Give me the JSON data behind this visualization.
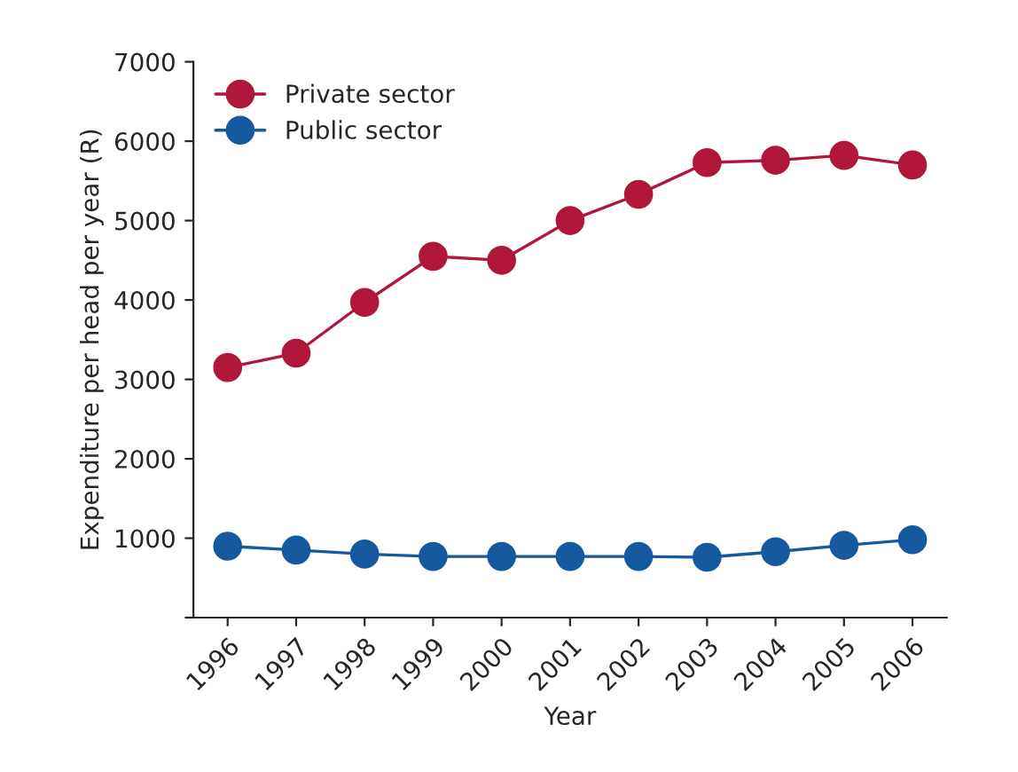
{
  "chart_data": {
    "type": "line",
    "xlabel": "Year",
    "ylabel": "Expenditure per head per year (R)",
    "categories": [
      "1996",
      "1997",
      "1998",
      "1999",
      "2000",
      "2001",
      "2002",
      "2003",
      "2004",
      "2005",
      "2006"
    ],
    "series": [
      {
        "name": "Private sector",
        "color": "#b0173a",
        "values": [
          3150,
          3330,
          3970,
          4550,
          4500,
          5000,
          5330,
          5730,
          5760,
          5820,
          5700
        ]
      },
      {
        "name": "Public sector",
        "color": "#15599e",
        "values": [
          900,
          850,
          800,
          770,
          770,
          770,
          770,
          760,
          830,
          910,
          980
        ]
      }
    ],
    "ylim": [
      0,
      7000
    ],
    "yticks": [
      {
        "value": 0,
        "label": null
      },
      1000,
      2000,
      3000,
      4000,
      5000,
      6000,
      7000
    ],
    "marker": "circle",
    "line_style": "solid",
    "legend": "top left",
    "grid": false
  }
}
